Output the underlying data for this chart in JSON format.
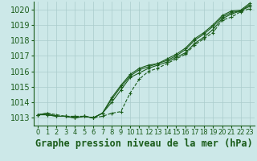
{
  "title": "Graphe pression niveau de la mer (hPa)",
  "xlabel_hours": [
    0,
    1,
    2,
    3,
    4,
    5,
    6,
    7,
    8,
    9,
    10,
    11,
    12,
    13,
    14,
    15,
    16,
    17,
    18,
    19,
    20,
    21,
    22,
    23
  ],
  "ylim": [
    1012.5,
    1020.5
  ],
  "yticks": [
    1013,
    1014,
    1015,
    1016,
    1017,
    1018,
    1019,
    1020
  ],
  "xlim": [
    -0.5,
    23.5
  ],
  "background_color": "#cce8e8",
  "grid_color": "#aacccc",
  "line_color": "#1a5c1a",
  "lines": [
    [
      1013.2,
      1013.3,
      1013.1,
      1013.1,
      1013.0,
      1013.1,
      1013.0,
      1013.3,
      1014.0,
      1014.8,
      1015.6,
      1015.9,
      1016.2,
      1016.4,
      1016.6,
      1016.9,
      1017.2,
      1017.8,
      1018.2,
      1018.7,
      1019.4,
      1019.7,
      1019.9,
      1020.2
    ],
    [
      1013.2,
      1013.2,
      1013.1,
      1013.1,
      1013.0,
      1013.1,
      1013.0,
      1013.3,
      1014.2,
      1015.0,
      1015.7,
      1016.1,
      1016.3,
      1016.5,
      1016.7,
      1017.0,
      1017.4,
      1018.0,
      1018.4,
      1018.9,
      1019.5,
      1019.8,
      1019.9,
      1020.3
    ],
    [
      1013.2,
      1013.2,
      1013.1,
      1013.1,
      1013.0,
      1013.1,
      1013.0,
      1013.3,
      1014.3,
      1015.1,
      1015.8,
      1016.2,
      1016.4,
      1016.5,
      1016.8,
      1017.1,
      1017.5,
      1018.1,
      1018.5,
      1019.0,
      1019.6,
      1019.9,
      1019.95,
      1020.4
    ],
    [
      1013.2,
      1013.3,
      1013.2,
      1013.1,
      1013.1,
      1013.1,
      1013.0,
      1013.1,
      1013.3,
      1013.4,
      1014.6,
      1015.5,
      1016.0,
      1016.2,
      1016.5,
      1016.8,
      1017.1,
      1017.7,
      1018.1,
      1018.5,
      1019.3,
      1019.5,
      1019.85,
      1020.05
    ]
  ],
  "line_styles": [
    "-",
    "-",
    "-",
    "--"
  ],
  "title_color": "#1a5c1a",
  "title_fontsize": 8.5,
  "ytick_fontsize": 7,
  "xtick_fontsize": 6,
  "marker": "+"
}
